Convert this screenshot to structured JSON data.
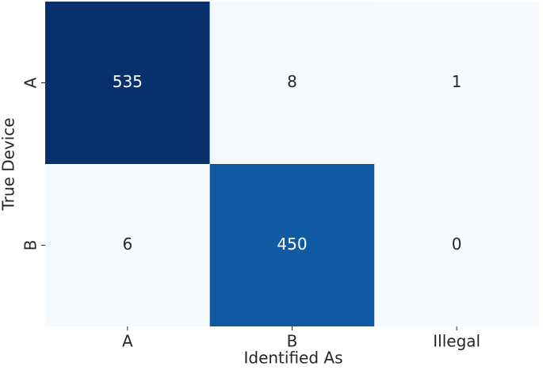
{
  "chart_data": {
    "type": "heatmap",
    "x_label": "Identified As",
    "y_label": "True Device",
    "x_categories": [
      "A",
      "B",
      "Illegal"
    ],
    "y_categories": [
      "A",
      "B"
    ],
    "values": [
      [
        535,
        8,
        1
      ],
      [
        6,
        450,
        0
      ]
    ],
    "colorscale": [
      "#f7fbff",
      "#deebf7",
      "#c6dbef",
      "#9ecae1",
      "#6baed6",
      "#4292c6",
      "#2171b5",
      "#08519c",
      "#08306b"
    ]
  }
}
